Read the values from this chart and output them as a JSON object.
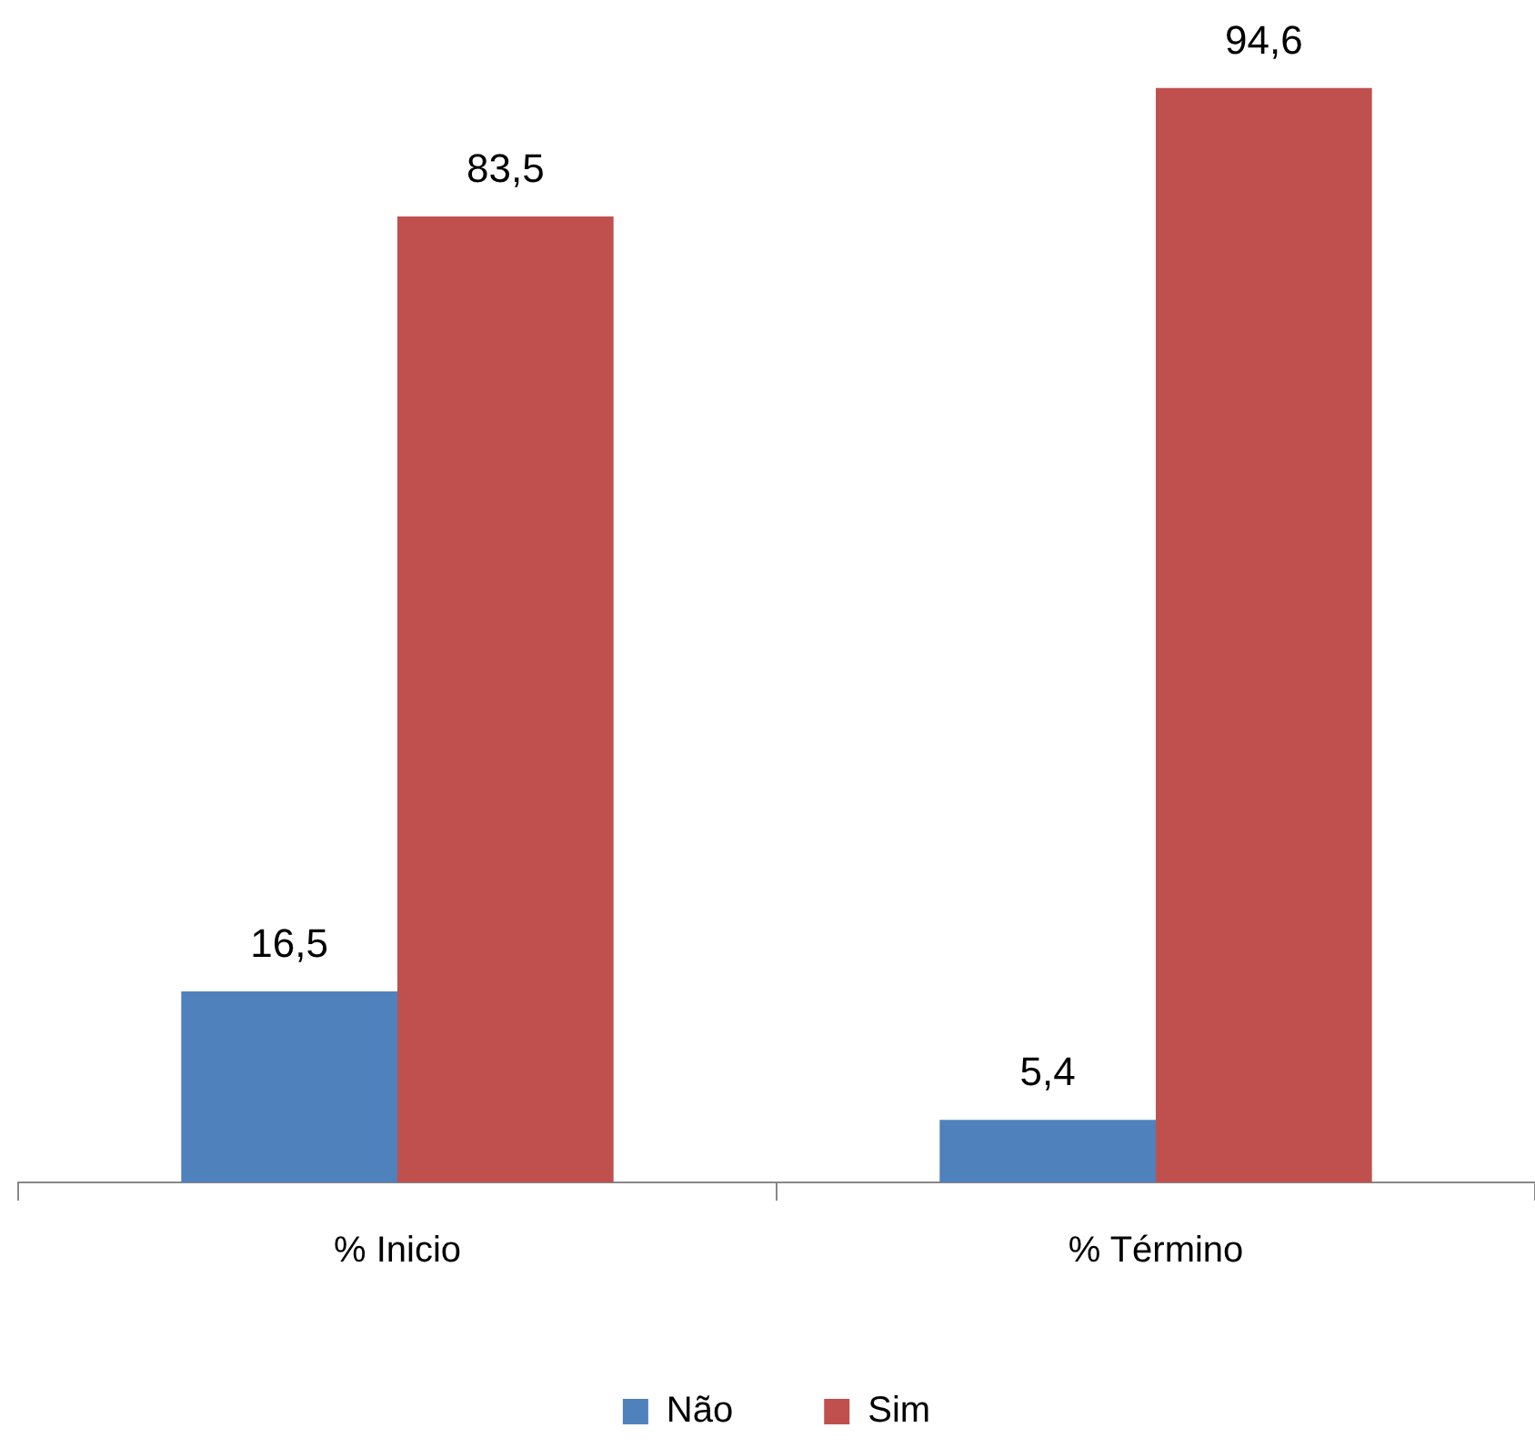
{
  "chart_data": {
    "type": "bar",
    "categories": [
      "% Inicio",
      "% Término"
    ],
    "series": [
      {
        "name": "Não",
        "color": "#4f81bd",
        "values": [
          16.5,
          5.4
        ],
        "value_labels": [
          "16,5",
          "5,4"
        ]
      },
      {
        "name": "Sim",
        "color": "#c0504d",
        "values": [
          83.5,
          94.6
        ],
        "value_labels": [
          "83,5",
          "94,6"
        ]
      }
    ],
    "legend": "bottom",
    "grid": false
  }
}
